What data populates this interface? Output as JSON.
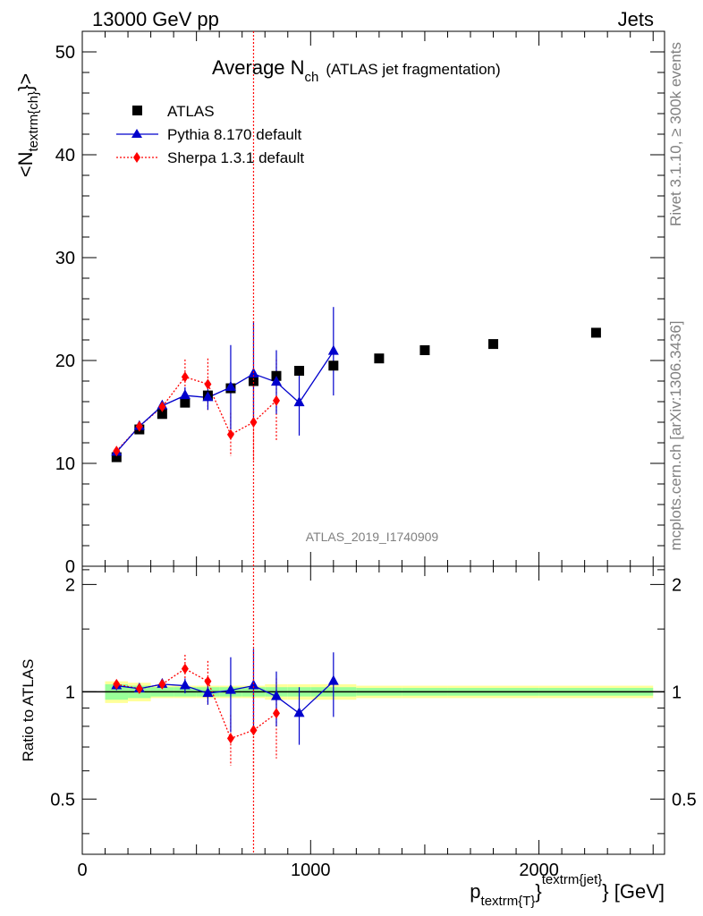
{
  "header": {
    "left": "13000 GeV pp",
    "right": "Jets"
  },
  "title": {
    "main": "Average N",
    "sub": "ch",
    "note": "(ATLAS jet fragmentation)"
  },
  "side_labels": {
    "top": "Rivet 3.1.10, ≥ 300k events",
    "bottom": "mcplots.cern.ch [arXiv:1306.3436]"
  },
  "watermark": "ATLAS_2019_I1740909",
  "colors": {
    "atlas": "#000000",
    "pythia": "#0000cc",
    "sherpa": "#ff0000",
    "band_inner": "#99ff99",
    "band_outer": "#ffff99",
    "cursor": "#ff0000"
  },
  "cursor_x": 750,
  "chart_data": [
    {
      "type": "scatter",
      "panel": "main",
      "ylabel": {
        "base": "<N",
        "sub": "textrm{ch}",
        "suffix": "}>"
      },
      "xlim": [
        0,
        2550
      ],
      "ylim": [
        0,
        52
      ],
      "yticks": [
        0,
        10,
        20,
        30,
        40,
        50
      ],
      "legend_position": "top-left",
      "series": [
        {
          "name": "ATLAS",
          "marker": "square",
          "x": [
            150,
            250,
            350,
            450,
            550,
            650,
            750,
            850,
            950,
            1100,
            1300,
            1500,
            1800,
            2250
          ],
          "y": [
            10.6,
            13.3,
            14.8,
            15.9,
            16.6,
            17.3,
            18.0,
            18.5,
            19.0,
            19.5,
            20.2,
            21.0,
            21.6,
            22.7
          ]
        },
        {
          "name": "Pythia 8.170 default",
          "marker": "triangle",
          "x": [
            150,
            250,
            350,
            450,
            550,
            650,
            750,
            850,
            950,
            1100
          ],
          "y": [
            11.1,
            13.6,
            15.6,
            16.6,
            16.4,
            17.4,
            18.7,
            17.9,
            15.9,
            20.9
          ],
          "yerr": [
            0.3,
            0.3,
            0.4,
            0.8,
            1.2,
            4.1,
            5.1,
            3.1,
            3.2,
            4.3
          ]
        },
        {
          "name": "Sherpa 1.3.1 default",
          "marker": "diamond",
          "x": [
            150,
            250,
            350,
            450,
            550,
            650,
            750,
            850
          ],
          "y": [
            11.2,
            13.6,
            15.5,
            18.4,
            17.7,
            12.8,
            14.0,
            16.1
          ],
          "yerr": [
            0.3,
            0.3,
            0.5,
            1.7,
            2.5,
            2.1,
            3.8,
            4.0
          ]
        }
      ]
    },
    {
      "type": "scatter",
      "panel": "ratio",
      "ylabel": "Ratio to ATLAS",
      "xlabel": {
        "base": "p",
        "sub": "textrm{T}",
        "mid": "}",
        "sup": "textrm{jet}",
        "suffix": "} [GeV]"
      },
      "xlim": [
        0,
        2550
      ],
      "ylim": [
        0.35,
        2.25
      ],
      "yticks": [
        0.5,
        1,
        2
      ],
      "ytick_labels": [
        "0.5",
        "1",
        "2"
      ],
      "xticks": [
        0,
        1000,
        2000
      ],
      "xtick_labels": [
        "0",
        "1000",
        "2000"
      ],
      "band": {
        "x_edges": [
          100,
          200,
          300,
          400,
          500,
          600,
          700,
          800,
          900,
          1000,
          1200,
          1400,
          1600,
          2000,
          2500
        ],
        "inner": [
          0.05,
          0.04,
          0.03,
          0.03,
          0.03,
          0.03,
          0.03,
          0.03,
          0.03,
          0.03,
          0.025,
          0.025,
          0.025,
          0.025
        ],
        "outer": [
          0.07,
          0.06,
          0.04,
          0.04,
          0.04,
          0.04,
          0.04,
          0.05,
          0.05,
          0.05,
          0.04,
          0.04,
          0.04,
          0.04
        ]
      },
      "series": [
        {
          "name": "Pythia 8.170 default",
          "x": [
            150,
            250,
            350,
            450,
            550,
            650,
            750,
            850,
            950,
            1100
          ],
          "y": [
            1.04,
            1.02,
            1.05,
            1.04,
            0.99,
            1.01,
            1.04,
            0.97,
            0.87,
            1.07
          ],
          "yerr": [
            0.03,
            0.02,
            0.03,
            0.05,
            0.07,
            0.24,
            0.28,
            0.17,
            0.16,
            0.22
          ]
        },
        {
          "name": "Sherpa 1.3.1 default",
          "x": [
            150,
            250,
            350,
            450,
            550,
            650,
            750,
            850
          ],
          "y": [
            1.05,
            1.02,
            1.05,
            1.16,
            1.07,
            0.74,
            0.78,
            0.87
          ],
          "yerr": [
            0.03,
            0.02,
            0.03,
            0.11,
            0.15,
            0.12,
            0.21,
            0.22
          ]
        }
      ]
    }
  ]
}
